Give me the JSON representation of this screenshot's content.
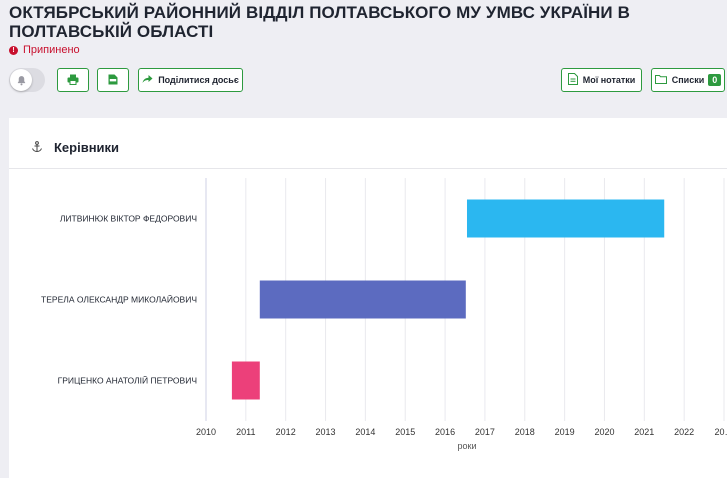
{
  "page": {
    "title": "Октябрський районний відділ Полтавського МУ УМВС України в Полтавській області",
    "status": "Припинено"
  },
  "toolbar": {
    "share_label": "Поділитися досьє",
    "notes_label": "Мої нотатки",
    "lists_label": "Списки",
    "lists_count": "0"
  },
  "card": {
    "title": "Керівники"
  },
  "chart_data": {
    "type": "bar",
    "orientation": "horizontal-timeline",
    "xlabel": "роки",
    "xlim": [
      2010,
      2023
    ],
    "ticks": [
      "2010",
      "2011",
      "2012",
      "2013",
      "2014",
      "2015",
      "2016",
      "2017",
      "2018",
      "2019",
      "2020",
      "2021",
      "2022",
      "20…"
    ],
    "grid": true,
    "series": [
      {
        "name": "ЛИТВИНЮК ВІКТОР ФЕДОРОВИЧ",
        "start": 2016.55,
        "end": 2021.5,
        "color": "#2bb7f0"
      },
      {
        "name": "ТЕРЕЛА ОЛЕКСАНДР МИКОЛАЙОВИЧ",
        "start": 2011.35,
        "end": 2016.52,
        "color": "#5c6bc0"
      },
      {
        "name": "ГРИЦЕНКО АНАТОЛІЙ ПЕТРОВИЧ",
        "start": 2010.65,
        "end": 2011.35,
        "color": "#ec407a"
      }
    ]
  }
}
